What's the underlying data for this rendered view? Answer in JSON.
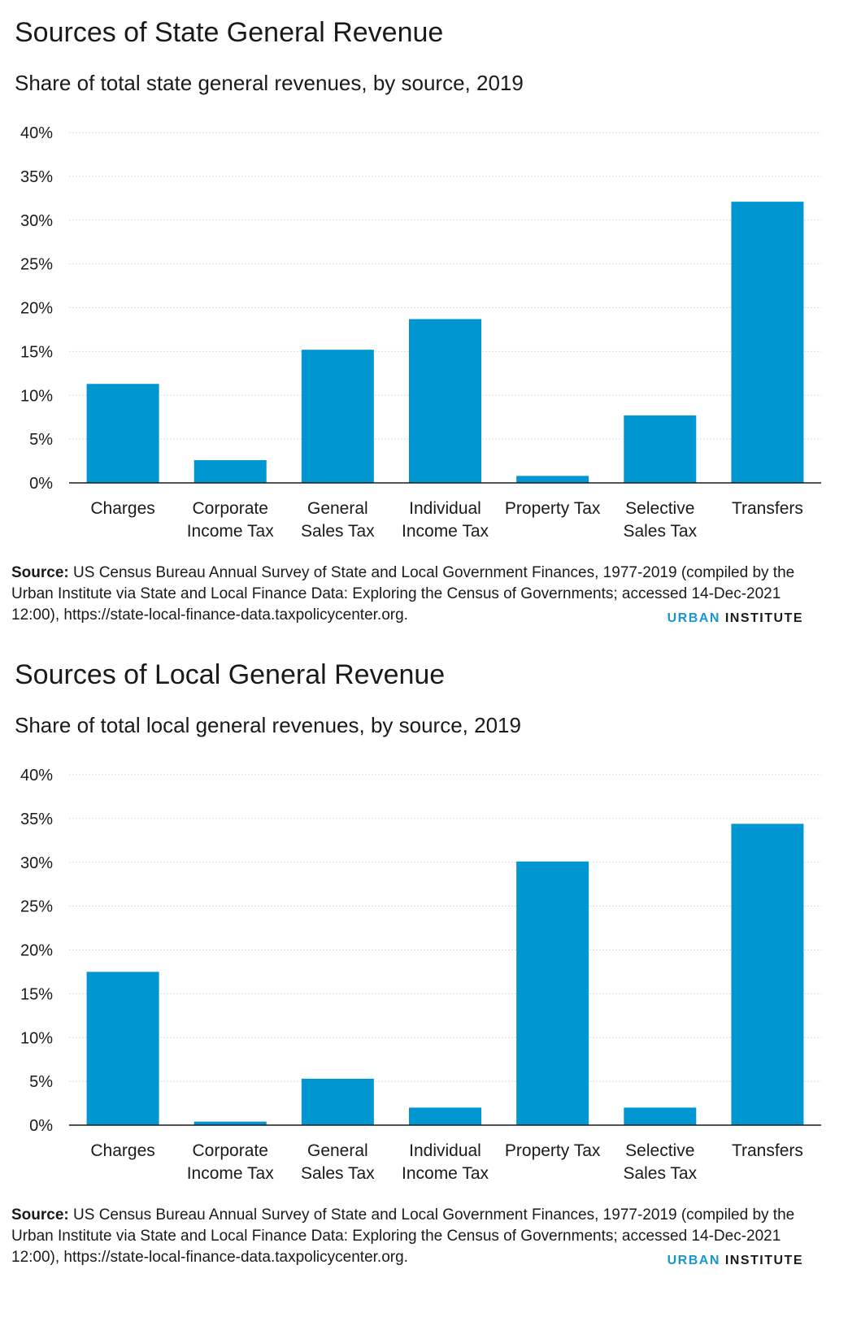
{
  "logo": {
    "part1": "URBAN",
    "part2": "INSTITUTE"
  },
  "source": {
    "label": "Source:",
    "text": " US Census Bureau Annual Survey of State and Local Government Finances, 1977-2019 (compiled by the Urban Institute via State and Local Finance Data: Exploring the Census of Governments; accessed 14-Dec-2021 12:00), https://state-local-finance-data.taxpolicycenter.org."
  },
  "colors": {
    "bar": "#0096d2",
    "grid": "#dddddd",
    "axis": "#1a1a1a"
  },
  "chart_data": [
    {
      "type": "bar",
      "title": "Sources of State General Revenue",
      "subtitle": "Share of total state general revenues, by source, 2019",
      "categories": [
        [
          "Charges"
        ],
        [
          "Corporate",
          "Income Tax"
        ],
        [
          "General",
          "Sales Tax"
        ],
        [
          "Individual",
          "Income Tax"
        ],
        [
          "Property Tax"
        ],
        [
          "Selective",
          "Sales Tax"
        ],
        [
          "Transfers"
        ]
      ],
      "values": [
        11.3,
        2.6,
        15.2,
        18.7,
        0.8,
        7.7,
        32.1
      ],
      "ylim": [
        0,
        40
      ],
      "yticks": [
        0,
        5,
        10,
        15,
        20,
        25,
        30,
        35,
        40
      ],
      "ytick_labels": [
        "0%",
        "5%",
        "10%",
        "15%",
        "20%",
        "25%",
        "30%",
        "35%",
        "40%"
      ],
      "grid": true,
      "xlabel": "",
      "ylabel": ""
    },
    {
      "type": "bar",
      "title": "Sources of Local General Revenue",
      "subtitle": "Share of total local general revenues, by source, 2019",
      "categories": [
        [
          "Charges"
        ],
        [
          "Corporate",
          "Income Tax"
        ],
        [
          "General",
          "Sales Tax"
        ],
        [
          "Individual",
          "Income Tax"
        ],
        [
          "Property Tax"
        ],
        [
          "Selective",
          "Sales Tax"
        ],
        [
          "Transfers"
        ]
      ],
      "values": [
        17.5,
        0.4,
        5.3,
        2.0,
        30.1,
        2.0,
        34.4
      ],
      "ylim": [
        0,
        40
      ],
      "yticks": [
        0,
        5,
        10,
        15,
        20,
        25,
        30,
        35,
        40
      ],
      "ytick_labels": [
        "0%",
        "5%",
        "10%",
        "15%",
        "20%",
        "25%",
        "30%",
        "35%",
        "40%"
      ],
      "grid": true,
      "xlabel": "",
      "ylabel": ""
    }
  ]
}
